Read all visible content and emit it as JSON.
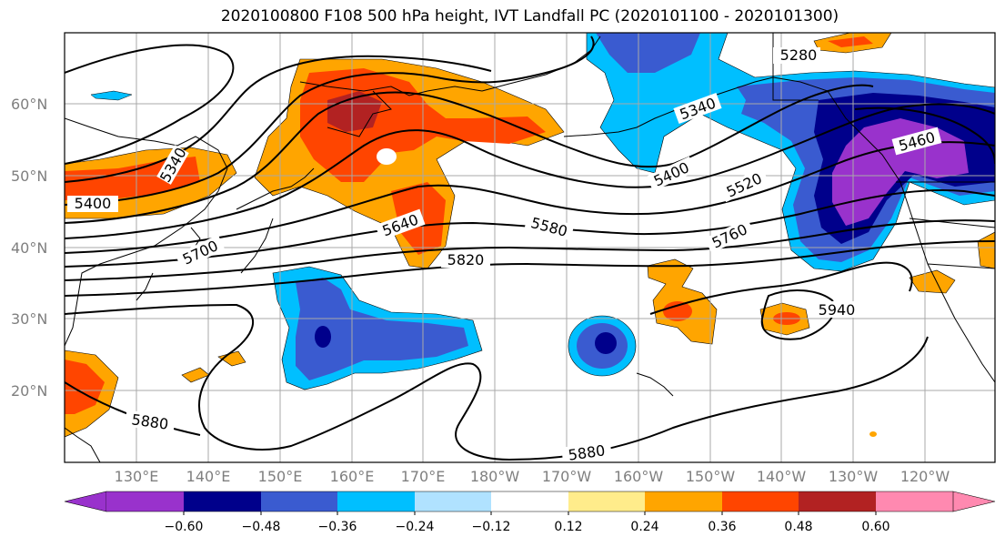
{
  "title": "2020100800 F108 500 hPa height, IVT Landfall PC (2020101100 - 2020101300)",
  "lat_labels": [
    "60°N",
    "50°N",
    "40°N",
    "30°N",
    "20°N"
  ],
  "lon_labels": [
    "130°E",
    "140°E",
    "150°E",
    "160°E",
    "170°E",
    "180°W",
    "170°W",
    "160°W",
    "150°W",
    "140°W",
    "130°W",
    "120°W"
  ],
  "contour_labels": [
    "5280",
    "5340",
    "5340",
    "5400",
    "5400",
    "5460",
    "5520",
    "5580",
    "5640",
    "5700",
    "5760",
    "5820",
    "5880",
    "5880",
    "5940"
  ],
  "colorbar": {
    "ticks": [
      "−0.60",
      "−0.48",
      "−0.36",
      "−0.24",
      "−0.12",
      "0.12",
      "0.24",
      "0.36",
      "0.48",
      "0.60"
    ],
    "colors": [
      "#9932cc",
      "#00008b",
      "#3a5bd0",
      "#00bfff",
      "#b0e2ff",
      "#ffffff",
      "#ffec8b",
      "#ffa500",
      "#ff4500",
      "#b22222",
      "#ff89b0"
    ]
  }
}
